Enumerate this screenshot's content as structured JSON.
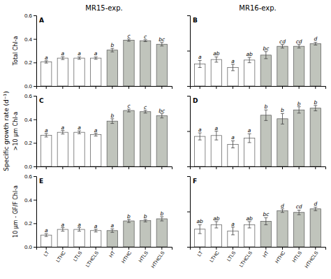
{
  "chart_data": [
    {
      "type": "bar",
      "title": "MR15-exp.",
      "panel_label": "A",
      "y_label": "Total Chl-a",
      "categories": [
        "LT",
        "LTHC",
        "LTLS",
        "LTHCLS",
        "HT",
        "HTHC",
        "HTLS",
        "HTHCLS"
      ],
      "values": [
        0.205,
        0.237,
        0.237,
        0.237,
        0.305,
        0.39,
        0.385,
        0.355
      ],
      "errors": [
        0.01,
        0.012,
        0.01,
        0.01,
        0.015,
        0.01,
        0.008,
        0.015
      ],
      "colors": [
        "#ffffff",
        "#ffffff",
        "#ffffff",
        "#ffffff",
        "#c0c4bc",
        "#c0c4bc",
        "#c0c4bc",
        "#c0c4bc"
      ],
      "letters": [
        "a",
        "a",
        "a",
        "a",
        "b",
        "c",
        "c",
        "bc"
      ],
      "ylim": [
        0,
        0.6
      ],
      "yticks": [
        {
          "value": 0,
          "label": "0.0"
        },
        0.2,
        0.4,
        0.6
      ],
      "grid": false,
      "tick_labels": "y"
    },
    {
      "type": "bar",
      "title": "MR16-exp.",
      "panel_label": "B",
      "categories": [
        "LT",
        "LTHC",
        "LTLS",
        "LTHCLS",
        "HT",
        "HTHC",
        "HTLS",
        "HTHCLS"
      ],
      "values": [
        0.125,
        0.15,
        0.105,
        0.147,
        0.175,
        0.225,
        0.225,
        0.24
      ],
      "errors": [
        0.02,
        0.015,
        0.018,
        0.015,
        0.02,
        0.01,
        0.01,
        0.008
      ],
      "colors": [
        "#ffffff",
        "#ffffff",
        "#ffffff",
        "#ffffff",
        "#c0c4bc",
        "#c0c4bc",
        "#c0c4bc",
        "#c0c4bc"
      ],
      "letters": [
        "a",
        "ab",
        "a",
        "ab",
        "bc",
        "cd",
        "cd",
        "d"
      ],
      "ylim": [
        0,
        0.4
      ],
      "yticks": [
        {
          "value": 0,
          "label": "0.0"
        },
        0.2,
        0.4
      ],
      "grid": false,
      "tick_labels": false
    },
    {
      "type": "bar",
      "panel_label": "C",
      "y_label": ">10 μm Chl-a",
      "annotations": [
        "Specific growth rate (d⁻¹)"
      ],
      "categories": [
        "LT",
        "LTHC",
        "LTLS",
        "LTHCLS",
        "HT",
        "HTHC",
        "HTLS",
        "HTHCLS"
      ],
      "values": [
        0.265,
        0.29,
        0.29,
        0.27,
        0.385,
        0.475,
        0.465,
        0.43
      ],
      "errors": [
        0.015,
        0.015,
        0.012,
        0.012,
        0.02,
        0.012,
        0.012,
        0.018
      ],
      "colors": [
        "#ffffff",
        "#ffffff",
        "#ffffff",
        "#ffffff",
        "#c0c4bc",
        "#c0c4bc",
        "#c0c4bc",
        "#c0c4bc"
      ],
      "letters": [
        "a",
        "a",
        "a",
        "a",
        "b",
        "c",
        "c",
        "bc"
      ],
      "ylim": [
        0,
        0.6
      ],
      "yticks": [
        {
          "value": 0,
          "label": "0.0"
        },
        0.2,
        0.4,
        0.6
      ],
      "grid": false,
      "tick_labels": "y"
    },
    {
      "type": "bar",
      "panel_label": "D",
      "categories": [
        "LT",
        "LTHC",
        "LTLS",
        "LTHCLS",
        "HT",
        "HTHC",
        "HTLS",
        "HTHCLS"
      ],
      "values": [
        0.17,
        0.175,
        0.125,
        0.16,
        0.29,
        0.27,
        0.32,
        0.33
      ],
      "errors": [
        0.02,
        0.025,
        0.02,
        0.025,
        0.03,
        0.03,
        0.018,
        0.015
      ],
      "colors": [
        "#ffffff",
        "#ffffff",
        "#ffffff",
        "#ffffff",
        "#c0c4bc",
        "#c0c4bc",
        "#c0c4bc",
        "#c0c4bc"
      ],
      "letters": [
        "a",
        "a",
        "a",
        "a",
        "b",
        "b",
        "b",
        "b"
      ],
      "ylim": [
        0,
        0.4
      ],
      "yticks": [
        {
          "value": 0,
          "label": "0.0"
        },
        0.2,
        0.4
      ],
      "grid": false,
      "tick_labels": false
    },
    {
      "type": "bar",
      "panel_label": "E",
      "y_label": "10 μm - GF/F Chl-a",
      "categories": [
        "LT",
        "LTHC",
        "LTLS",
        "LTHCLS",
        "HT",
        "HTHC",
        "HTLS",
        "HTHCLS"
      ],
      "values": [
        0.1,
        0.148,
        0.148,
        0.138,
        0.138,
        0.22,
        0.222,
        0.238
      ],
      "errors": [
        0.012,
        0.015,
        0.015,
        0.012,
        0.015,
        0.013,
        0.01,
        0.018
      ],
      "colors": [
        "#ffffff",
        "#ffffff",
        "#ffffff",
        "#ffffff",
        "#c0c4bc",
        "#c0c4bc",
        "#c0c4bc",
        "#c0c4bc"
      ],
      "letters": [
        "a",
        "a",
        "a",
        "a",
        "a",
        "b",
        "b",
        "b"
      ],
      "ylim": [
        0,
        0.6
      ],
      "yticks": [
        {
          "value": 0,
          "label": "0.0"
        },
        0.2,
        0.4,
        0.6
      ],
      "grid": false,
      "tick_labels": true
    },
    {
      "type": "bar",
      "panel_label": "F",
      "categories": [
        "LT",
        "LTHC",
        "LTLS",
        "LTHCLS",
        "HT",
        "HTHC",
        "HTLS",
        "HTHCLS"
      ],
      "values": [
        0.1,
        0.125,
        0.09,
        0.125,
        0.145,
        0.205,
        0.195,
        0.215
      ],
      "errors": [
        0.025,
        0.018,
        0.022,
        0.018,
        0.02,
        0.01,
        0.013,
        0.01
      ],
      "colors": [
        "#ffffff",
        "#ffffff",
        "#ffffff",
        "#ffffff",
        "#c0c4bc",
        "#c0c4bc",
        "#c0c4bc",
        "#c0c4bc"
      ],
      "letters": [
        "ab",
        "ab",
        "a",
        "ab",
        "bc",
        "d",
        "cd",
        "d"
      ],
      "ylim": [
        0,
        0.4
      ],
      "yticks": [
        {
          "value": 0,
          "label": "0.0"
        },
        0.2,
        0.4
      ],
      "grid": false,
      "tick_labels": "x"
    }
  ]
}
